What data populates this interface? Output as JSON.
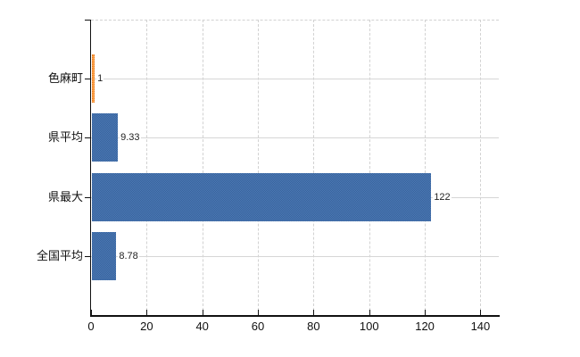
{
  "chart_data": {
    "type": "bar",
    "orientation": "horizontal",
    "categories": [
      "色麻町",
      "県平均",
      "県最大",
      "全国平均"
    ],
    "values": [
      1,
      9.33,
      122,
      8.78
    ],
    "value_labels": [
      "1",
      "9.33",
      "122",
      "8.78"
    ],
    "bar_color_keys": [
      "orange",
      "blue",
      "blue",
      "blue"
    ],
    "x_tick_values": [
      0,
      20,
      40,
      60,
      80,
      100,
      120,
      140
    ],
    "x_tick_labels": [
      "0",
      "20",
      "40",
      "60",
      "80",
      "100",
      "120",
      "140"
    ],
    "xlim": [
      0,
      146.6
    ],
    "grid": true,
    "legend": "none",
    "colors": {
      "blue": "#4171aa",
      "blue_light": "#4c7ab6",
      "blue_dark": "#38629b",
      "orange": "#ffa54e",
      "orange_border": "#e2761b",
      "grid": "#d2d2d2",
      "grid_solid": "#d6d6d6",
      "axis": "#111111"
    }
  }
}
